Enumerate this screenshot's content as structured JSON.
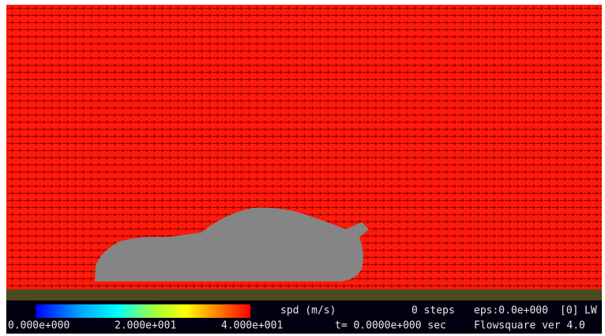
{
  "colorbar": {
    "title": "spd (m/s)",
    "labels": [
      "0.000e+000",
      "2.000e+001",
      "4.000e+001"
    ]
  },
  "status": {
    "steps": "0 steps",
    "eps": "eps:0.0e+000",
    "index": "[0]",
    "mode": "LW",
    "time": "t= 0.0000e+000 sec",
    "version": "Flowsquare ver 4.0"
  }
}
